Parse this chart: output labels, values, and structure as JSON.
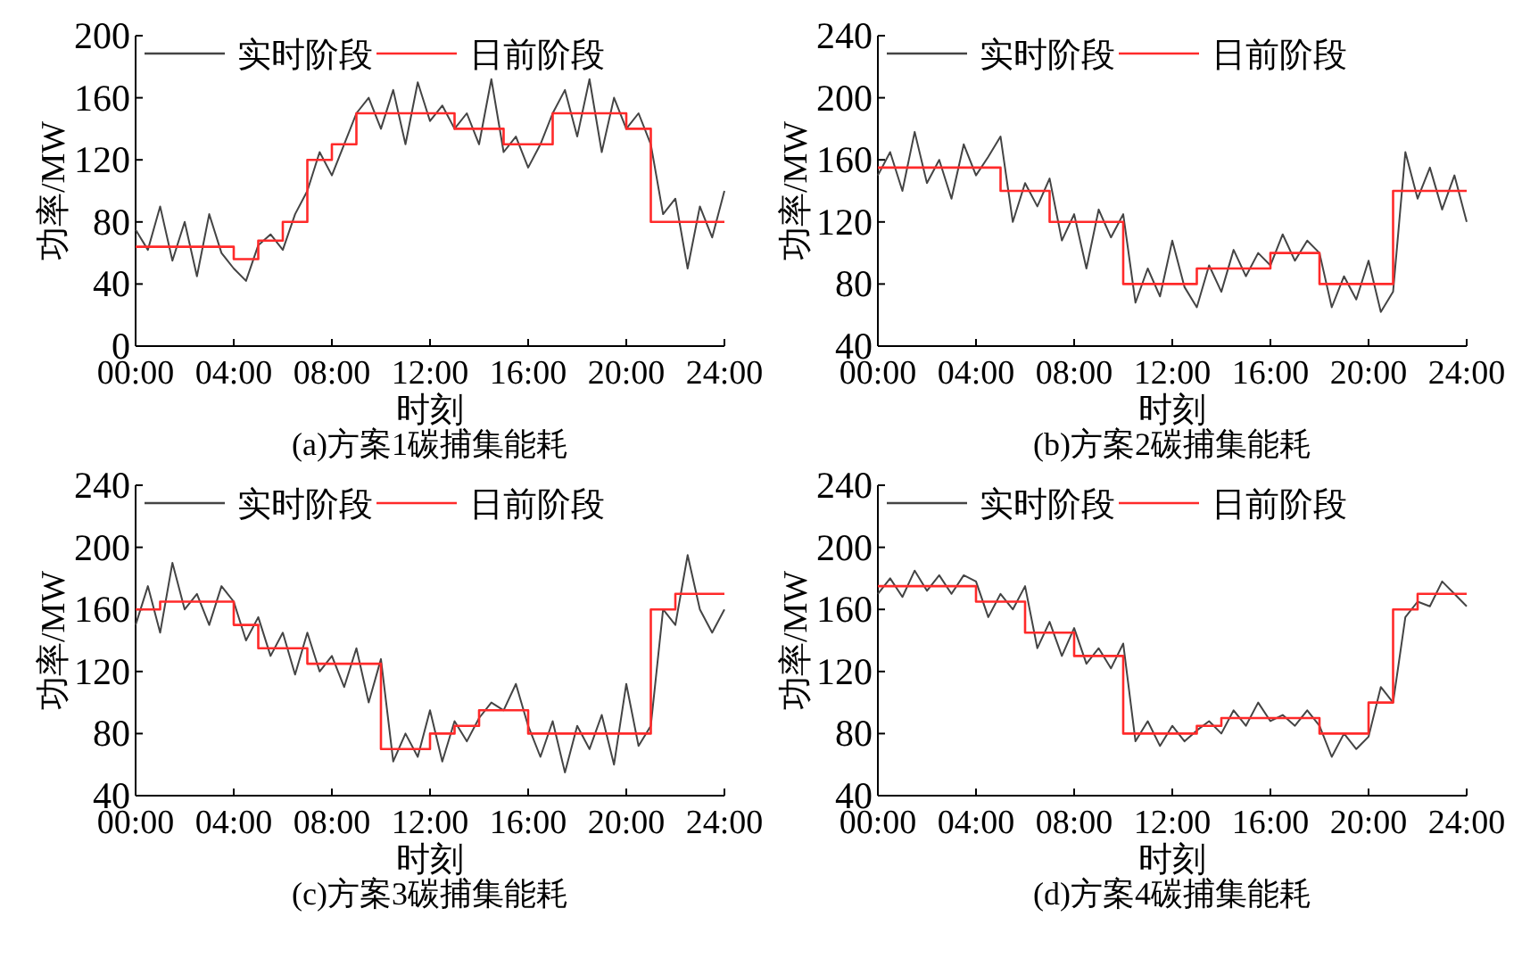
{
  "chart_data": [
    {
      "type": "line",
      "title": "(a)方案1碳捕集能耗",
      "xlabel": "时刻",
      "ylabel": "功率/MW",
      "legend": "top",
      "xlim": [
        0,
        24
      ],
      "xticks": [
        {
          "value": 0,
          "label": "00:00"
        },
        {
          "value": 4,
          "label": "04:00"
        },
        {
          "value": 8,
          "label": "08:00"
        },
        {
          "value": 12,
          "label": "12:00"
        },
        {
          "value": 16,
          "label": "16:00"
        },
        {
          "value": 20,
          "label": "20:00"
        },
        {
          "value": 24,
          "label": "24:00"
        }
      ],
      "ylim": [
        0,
        200
      ],
      "yticks": [
        0,
        40,
        80,
        120,
        160,
        200
      ],
      "series": [
        {
          "name": "实时阶段",
          "type": "line",
          "color": "#444444",
          "x": [
            0,
            0.5,
            1,
            1.5,
            2,
            2.5,
            3,
            3.5,
            4,
            4.5,
            5,
            5.5,
            6,
            6.5,
            7,
            7.5,
            8,
            8.5,
            9,
            9.5,
            10,
            10.5,
            11,
            11.5,
            12,
            12.5,
            13,
            13.5,
            14,
            14.5,
            15,
            15.5,
            16,
            16.5,
            17,
            17.5,
            18,
            18.5,
            19,
            19.5,
            20,
            20.5,
            21,
            21.5,
            22,
            22.5,
            23,
            23.5,
            24
          ],
          "values": [
            75,
            62,
            90,
            55,
            80,
            45,
            85,
            60,
            50,
            42,
            65,
            72,
            62,
            85,
            100,
            125,
            110,
            130,
            150,
            160,
            140,
            165,
            130,
            170,
            145,
            155,
            140,
            150,
            130,
            172,
            125,
            135,
            115,
            130,
            150,
            165,
            135,
            172,
            125,
            160,
            140,
            150,
            130,
            85,
            95,
            50,
            90,
            70,
            100
          ]
        },
        {
          "name": "日前阶段",
          "type": "step",
          "color": "#ff2a2a",
          "x": [
            0,
            4,
            5,
            6,
            7,
            8,
            9,
            13,
            15,
            17,
            20,
            21,
            24
          ],
          "values": [
            64,
            56,
            68,
            80,
            120,
            130,
            150,
            140,
            130,
            150,
            140,
            80,
            80
          ]
        }
      ]
    },
    {
      "type": "line",
      "title": "(b)方案2碳捕集能耗",
      "xlabel": "时刻",
      "ylabel": "功率/MW",
      "legend": "top",
      "xlim": [
        0,
        24
      ],
      "xticks": [
        {
          "value": 0,
          "label": "00:00"
        },
        {
          "value": 4,
          "label": "04:00"
        },
        {
          "value": 8,
          "label": "08:00"
        },
        {
          "value": 12,
          "label": "12:00"
        },
        {
          "value": 16,
          "label": "16:00"
        },
        {
          "value": 20,
          "label": "20:00"
        },
        {
          "value": 24,
          "label": "24:00"
        }
      ],
      "ylim": [
        40,
        240
      ],
      "yticks": [
        40,
        80,
        120,
        160,
        200,
        240
      ],
      "series": [
        {
          "name": "实时阶段",
          "type": "line",
          "color": "#444444",
          "x": [
            0,
            0.5,
            1,
            1.5,
            2,
            2.5,
            3,
            3.5,
            4,
            4.5,
            5,
            5.5,
            6,
            6.5,
            7,
            7.5,
            8,
            8.5,
            9,
            9.5,
            10,
            10.5,
            11,
            11.5,
            12,
            12.5,
            13,
            13.5,
            14,
            14.5,
            15,
            15.5,
            16,
            16.5,
            17,
            17.5,
            18,
            18.5,
            19,
            19.5,
            20,
            20.5,
            21,
            21.5,
            22,
            22.5,
            23,
            23.5,
            24
          ],
          "values": [
            150,
            165,
            140,
            178,
            145,
            160,
            135,
            170,
            150,
            162,
            175,
            120,
            145,
            130,
            148,
            108,
            125,
            90,
            128,
            110,
            125,
            68,
            90,
            72,
            108,
            78,
            65,
            92,
            75,
            102,
            85,
            100,
            92,
            112,
            95,
            108,
            100,
            65,
            85,
            70,
            95,
            62,
            75,
            165,
            135,
            155,
            128,
            150,
            120
          ]
        },
        {
          "name": "日前阶段",
          "type": "step",
          "color": "#ff2a2a",
          "x": [
            0,
            5,
            7,
            10,
            13,
            16,
            18,
            21,
            24
          ],
          "values": [
            155,
            140,
            120,
            80,
            90,
            100,
            80,
            140,
            140
          ]
        }
      ]
    },
    {
      "type": "line",
      "title": "(c)方案3碳捕集能耗",
      "xlabel": "时刻",
      "ylabel": "功率/MW",
      "legend": "top",
      "xlim": [
        0,
        24
      ],
      "xticks": [
        {
          "value": 0,
          "label": "00:00"
        },
        {
          "value": 4,
          "label": "04:00"
        },
        {
          "value": 8,
          "label": "08:00"
        },
        {
          "value": 12,
          "label": "12:00"
        },
        {
          "value": 16,
          "label": "16:00"
        },
        {
          "value": 20,
          "label": "20:00"
        },
        {
          "value": 24,
          "label": "24:00"
        }
      ],
      "ylim": [
        40,
        240
      ],
      "yticks": [
        40,
        80,
        120,
        160,
        200,
        240
      ],
      "series": [
        {
          "name": "实时阶段",
          "type": "line",
          "color": "#444444",
          "x": [
            0,
            0.5,
            1,
            1.5,
            2,
            2.5,
            3,
            3.5,
            4,
            4.5,
            5,
            5.5,
            6,
            6.5,
            7,
            7.5,
            8,
            8.5,
            9,
            9.5,
            10,
            10.5,
            11,
            11.5,
            12,
            12.5,
            13,
            13.5,
            14,
            14.5,
            15,
            15.5,
            16,
            16.5,
            17,
            17.5,
            18,
            18.5,
            19,
            19.5,
            20,
            20.5,
            21,
            21.5,
            22,
            22.5,
            23,
            23.5,
            24
          ],
          "values": [
            150,
            175,
            145,
            190,
            160,
            170,
            150,
            175,
            165,
            140,
            155,
            130,
            145,
            118,
            145,
            120,
            130,
            110,
            135,
            100,
            128,
            62,
            80,
            65,
            95,
            62,
            88,
            75,
            90,
            100,
            95,
            112,
            85,
            65,
            88,
            55,
            85,
            70,
            92,
            60,
            112,
            72,
            85,
            160,
            150,
            195,
            160,
            145,
            160
          ]
        },
        {
          "name": "日前阶段",
          "type": "step",
          "color": "#ff2a2a",
          "x": [
            0,
            1,
            4,
            5,
            7,
            10,
            12,
            13,
            14,
            16,
            21,
            22,
            24
          ],
          "values": [
            160,
            165,
            150,
            135,
            125,
            70,
            80,
            85,
            95,
            80,
            160,
            170,
            170
          ]
        }
      ]
    },
    {
      "type": "line",
      "title": "(d)方案4碳捕集能耗",
      "xlabel": "时刻",
      "ylabel": "功率/MW",
      "legend": "top",
      "xlim": [
        0,
        24
      ],
      "xticks": [
        {
          "value": 0,
          "label": "00:00"
        },
        {
          "value": 4,
          "label": "04:00"
        },
        {
          "value": 8,
          "label": "08:00"
        },
        {
          "value": 12,
          "label": "12:00"
        },
        {
          "value": 16,
          "label": "16:00"
        },
        {
          "value": 20,
          "label": "20:00"
        },
        {
          "value": 24,
          "label": "24:00"
        }
      ],
      "ylim": [
        40,
        240
      ],
      "yticks": [
        40,
        80,
        120,
        160,
        200,
        240
      ],
      "series": [
        {
          "name": "实时阶段",
          "type": "line",
          "color": "#444444",
          "x": [
            0,
            0.5,
            1,
            1.5,
            2,
            2.5,
            3,
            3.5,
            4,
            4.5,
            5,
            5.5,
            6,
            6.5,
            7,
            7.5,
            8,
            8.5,
            9,
            9.5,
            10,
            10.5,
            11,
            11.5,
            12,
            12.5,
            13,
            13.5,
            14,
            14.5,
            15,
            15.5,
            16,
            16.5,
            17,
            17.5,
            18,
            18.5,
            19,
            19.5,
            20,
            20.5,
            21,
            21.5,
            22,
            22.5,
            23,
            23.5,
            24
          ],
          "values": [
            170,
            180,
            168,
            185,
            172,
            182,
            170,
            182,
            178,
            155,
            170,
            160,
            175,
            135,
            152,
            130,
            148,
            125,
            135,
            122,
            138,
            75,
            88,
            72,
            85,
            75,
            82,
            88,
            80,
            95,
            85,
            100,
            88,
            92,
            85,
            95,
            85,
            65,
            80,
            70,
            78,
            110,
            100,
            155,
            165,
            162,
            178,
            170,
            162
          ]
        },
        {
          "name": "日前阶段",
          "type": "step",
          "color": "#ff2a2a",
          "x": [
            0,
            4,
            6,
            8,
            10,
            13,
            14,
            18,
            20,
            21,
            22,
            24
          ],
          "values": [
            175,
            165,
            145,
            130,
            80,
            85,
            90,
            80,
            100,
            160,
            170,
            170
          ]
        }
      ]
    }
  ]
}
